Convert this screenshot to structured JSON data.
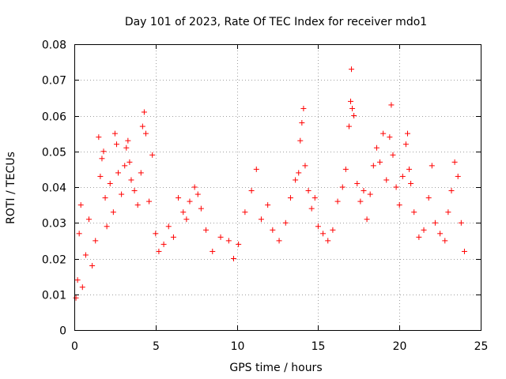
{
  "chart_data": {
    "type": "scatter",
    "title": "Day 101 of 2023, Rate Of TEC Index for receiver mdo1",
    "xlabel": "GPS time / hours",
    "ylabel": "ROTI / TECUs",
    "xlim": [
      0,
      25
    ],
    "ylim": [
      0,
      0.08
    ],
    "xticks": [
      0,
      5,
      10,
      15,
      20,
      25
    ],
    "xtick_labels": [
      "0",
      "5",
      "10",
      "15",
      "20",
      "25"
    ],
    "yticks": [
      0,
      0.01,
      0.02,
      0.03,
      0.04,
      0.05,
      0.06,
      0.07,
      0.08
    ],
    "ytick_labels": [
      "0",
      "0.01",
      "0.02",
      "0.03",
      "0.04",
      "0.05",
      "0.06",
      "0.07",
      "0.08"
    ],
    "grid": true,
    "marker": "+",
    "color": "#ff0000",
    "series": [
      {
        "name": "ROTI",
        "points": [
          [
            0.1,
            0.009
          ],
          [
            0.2,
            0.014
          ],
          [
            0.3,
            0.027
          ],
          [
            0.4,
            0.035
          ],
          [
            0.5,
            0.012
          ],
          [
            0.7,
            0.021
          ],
          [
            0.9,
            0.031
          ],
          [
            1.1,
            0.018
          ],
          [
            1.3,
            0.025
          ],
          [
            1.5,
            0.054
          ],
          [
            1.6,
            0.043
          ],
          [
            1.7,
            0.048
          ],
          [
            1.8,
            0.05
          ],
          [
            1.9,
            0.037
          ],
          [
            2.0,
            0.029
          ],
          [
            2.2,
            0.041
          ],
          [
            2.4,
            0.033
          ],
          [
            2.5,
            0.055
          ],
          [
            2.6,
            0.052
          ],
          [
            2.7,
            0.044
          ],
          [
            2.9,
            0.038
          ],
          [
            3.1,
            0.046
          ],
          [
            3.2,
            0.051
          ],
          [
            3.3,
            0.053
          ],
          [
            3.4,
            0.047
          ],
          [
            3.5,
            0.042
          ],
          [
            3.7,
            0.039
          ],
          [
            3.9,
            0.035
          ],
          [
            4.1,
            0.044
          ],
          [
            4.2,
            0.057
          ],
          [
            4.3,
            0.061
          ],
          [
            4.4,
            0.055
          ],
          [
            4.6,
            0.036
          ],
          [
            4.8,
            0.049
          ],
          [
            5.0,
            0.027
          ],
          [
            5.2,
            0.022
          ],
          [
            5.5,
            0.024
          ],
          [
            5.8,
            0.029
          ],
          [
            6.1,
            0.026
          ],
          [
            6.4,
            0.037
          ],
          [
            6.7,
            0.033
          ],
          [
            6.9,
            0.031
          ],
          [
            7.1,
            0.036
          ],
          [
            7.4,
            0.04
          ],
          [
            7.6,
            0.038
          ],
          [
            7.8,
            0.034
          ],
          [
            8.1,
            0.028
          ],
          [
            8.5,
            0.022
          ],
          [
            9.0,
            0.026
          ],
          [
            9.5,
            0.025
          ],
          [
            9.8,
            0.02
          ],
          [
            10.1,
            0.024
          ],
          [
            10.5,
            0.033
          ],
          [
            10.9,
            0.039
          ],
          [
            11.2,
            0.045
          ],
          [
            11.5,
            0.031
          ],
          [
            11.9,
            0.035
          ],
          [
            12.2,
            0.028
          ],
          [
            12.6,
            0.025
          ],
          [
            13.0,
            0.03
          ],
          [
            13.3,
            0.037
          ],
          [
            13.6,
            0.042
          ],
          [
            13.8,
            0.044
          ],
          [
            13.9,
            0.053
          ],
          [
            14.0,
            0.058
          ],
          [
            14.1,
            0.062
          ],
          [
            14.2,
            0.046
          ],
          [
            14.4,
            0.039
          ],
          [
            14.6,
            0.034
          ],
          [
            14.8,
            0.037
          ],
          [
            15.0,
            0.029
          ],
          [
            15.3,
            0.027
          ],
          [
            15.6,
            0.025
          ],
          [
            15.9,
            0.028
          ],
          [
            16.2,
            0.036
          ],
          [
            16.5,
            0.04
          ],
          [
            16.7,
            0.045
          ],
          [
            16.9,
            0.057
          ],
          [
            17.0,
            0.064
          ],
          [
            17.05,
            0.073
          ],
          [
            17.1,
            0.062
          ],
          [
            17.2,
            0.06
          ],
          [
            17.4,
            0.041
          ],
          [
            17.6,
            0.036
          ],
          [
            17.8,
            0.039
          ],
          [
            18.0,
            0.031
          ],
          [
            18.2,
            0.038
          ],
          [
            18.4,
            0.046
          ],
          [
            18.6,
            0.051
          ],
          [
            18.8,
            0.047
          ],
          [
            19.0,
            0.055
          ],
          [
            19.2,
            0.042
          ],
          [
            19.4,
            0.054
          ],
          [
            19.5,
            0.063
          ],
          [
            19.6,
            0.049
          ],
          [
            19.8,
            0.04
          ],
          [
            20.0,
            0.035
          ],
          [
            20.2,
            0.043
          ],
          [
            20.4,
            0.052
          ],
          [
            20.5,
            0.055
          ],
          [
            20.6,
            0.045
          ],
          [
            20.7,
            0.041
          ],
          [
            20.9,
            0.033
          ],
          [
            21.2,
            0.026
          ],
          [
            21.5,
            0.028
          ],
          [
            21.8,
            0.037
          ],
          [
            22.0,
            0.046
          ],
          [
            22.2,
            0.03
          ],
          [
            22.5,
            0.027
          ],
          [
            22.8,
            0.025
          ],
          [
            23.0,
            0.033
          ],
          [
            23.2,
            0.039
          ],
          [
            23.4,
            0.047
          ],
          [
            23.6,
            0.043
          ],
          [
            23.8,
            0.03
          ],
          [
            24.0,
            0.022
          ]
        ]
      }
    ]
  }
}
